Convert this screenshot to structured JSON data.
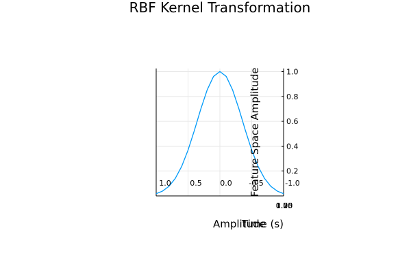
{
  "chart_data": {
    "type": "line",
    "title": "RBF Kernel Transformation",
    "x": [
      -1.0,
      -0.9,
      -0.8,
      -0.7,
      -0.6,
      -0.5,
      -0.4,
      -0.3,
      -0.2,
      -0.1,
      0.0,
      0.1,
      0.2,
      0.3,
      0.4,
      0.5,
      0.6,
      0.7,
      0.8,
      0.9,
      1.0
    ],
    "series": [
      {
        "name": "",
        "color": "#009af9",
        "values": [
          0.018,
          0.039,
          0.077,
          0.141,
          0.237,
          0.368,
          0.527,
          0.698,
          0.852,
          0.961,
          1.0,
          0.961,
          0.852,
          0.698,
          0.527,
          0.368,
          0.237,
          0.141,
          0.077,
          0.039,
          0.018
        ]
      }
    ],
    "xlim": [
      -1.0,
      1.0
    ],
    "ylim": [
      0.0,
      1.0
    ],
    "y_ticks": [
      "0.2",
      "0.4",
      "0.6",
      "0.8",
      "1.0"
    ],
    "x_ticks_mirrored": [
      "1.0",
      "0.5",
      "0.0",
      "-0.5",
      "-1.0"
    ],
    "x_ticks_overlapped": [
      "0.00",
      "0.25",
      "0.50",
      "0.75",
      "1.00"
    ],
    "xlabel_overlap_a": "Amplitude",
    "xlabel_overlap_b": "Time (s)",
    "ylabel": "Feature Space Amplitude",
    "grid": true,
    "legend": "none"
  }
}
